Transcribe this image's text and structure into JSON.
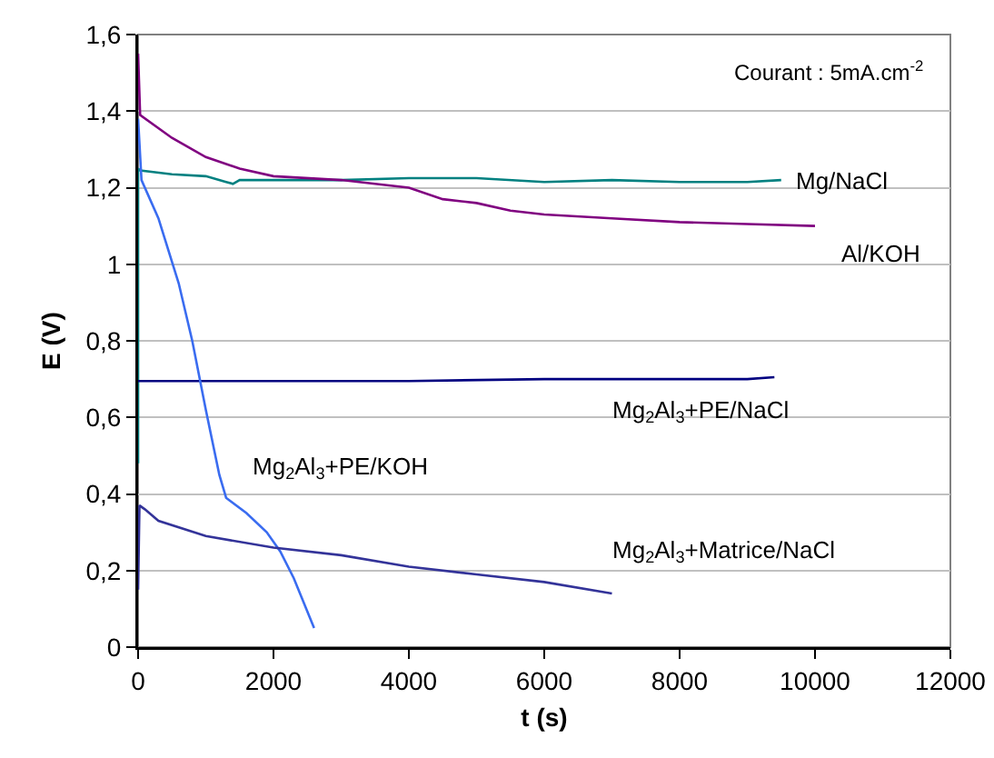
{
  "chart_data": {
    "type": "line",
    "xlabel": "t (s)",
    "ylabel": "E (V)",
    "xlim": [
      0,
      12000
    ],
    "xticks": [
      0,
      2000,
      4000,
      6000,
      8000,
      10000,
      12000
    ],
    "ylim": [
      0,
      1.6
    ],
    "yticks": [
      {
        "value": 0,
        "label": "0"
      },
      {
        "value": 0.2,
        "label": "0,2"
      },
      {
        "value": 0.4,
        "label": "0,4"
      },
      {
        "value": 0.6,
        "label": "0,6"
      },
      {
        "value": 0.8,
        "label": "0,8"
      },
      {
        "value": 1,
        "label": "1"
      },
      {
        "value": 1.2,
        "label": "1,2"
      },
      {
        "value": 1.4,
        "label": "1,4"
      },
      {
        "value": 1.6,
        "label": "1,6"
      }
    ],
    "grid": "y",
    "legend": false,
    "marker": "none",
    "line_style": "solid",
    "annotations": [
      "Courant : 5mA.cm$^{-2}$"
    ],
    "series": [
      {
        "name": "Mg/NaCl",
        "color": "#008080",
        "x": [
          0,
          0,
          30,
          500,
          1000,
          1300,
          1400,
          1500,
          2000,
          3000,
          4000,
          5000,
          6000,
          7000,
          8000,
          9000,
          9500
        ],
        "values": [
          0.48,
          1.25,
          1.245,
          1.235,
          1.23,
          1.215,
          1.21,
          1.22,
          1.22,
          1.22,
          1.225,
          1.225,
          1.215,
          1.22,
          1.215,
          1.215,
          1.22
        ]
      },
      {
        "name": "Al/KOH",
        "color": "#800080",
        "x": [
          0,
          30,
          500,
          1000,
          1500,
          2000,
          3000,
          4000,
          4500,
          5000,
          5500,
          6000,
          7000,
          8000,
          9000,
          10000
        ],
        "values": [
          1.55,
          1.39,
          1.33,
          1.28,
          1.25,
          1.23,
          1.22,
          1.2,
          1.17,
          1.16,
          1.14,
          1.13,
          1.12,
          1.11,
          1.105,
          1.1
        ]
      },
      {
        "name": "Mg$_{2}$Al$_{3}$+PE/NaCl",
        "color": "#000080",
        "x": [
          0,
          2000,
          4000,
          6000,
          8000,
          9000,
          9400
        ],
        "values": [
          0.695,
          0.695,
          0.695,
          0.7,
          0.7,
          0.7,
          0.705
        ]
      },
      {
        "name": "Mg$_{2}$Al$_{3}$+PE/KOH",
        "color": "#3a6cf0",
        "x": [
          0,
          50,
          300,
          600,
          800,
          1000,
          1200,
          1300,
          1600,
          1900,
          2100,
          2300,
          2600
        ],
        "values": [
          1.38,
          1.22,
          1.12,
          0.95,
          0.8,
          0.62,
          0.45,
          0.39,
          0.35,
          0.3,
          0.25,
          0.18,
          0.05
        ]
      },
      {
        "name": "Mg$_{2}$Al$_{3}$+Matrice/NaCl",
        "color": "#333399",
        "x": [
          0,
          20,
          100,
          300,
          1000,
          2000,
          3000,
          4000,
          5000,
          6000,
          7000
        ],
        "values": [
          0.15,
          0.37,
          0.36,
          0.33,
          0.29,
          0.26,
          0.24,
          0.21,
          0.19,
          0.17,
          0.14
        ]
      }
    ]
  }
}
